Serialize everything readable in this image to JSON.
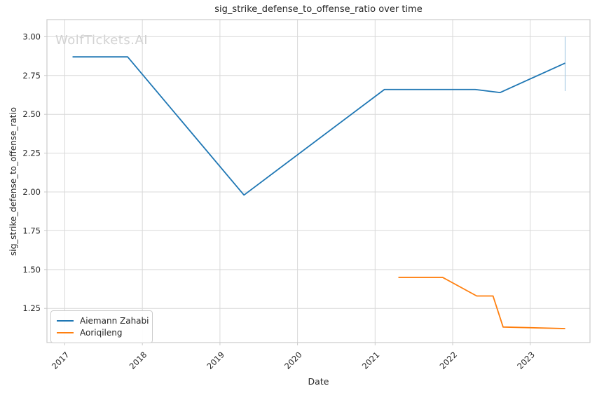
{
  "watermark": {
    "text": "WolfTickets.AI"
  },
  "chart_data": {
    "type": "line",
    "title": "sig_strike_defense_to_offense_ratio over time",
    "xlabel": "Date",
    "ylabel": "sig_strike_defense_to_offense_ratio",
    "xlim": [
      2016.77,
      2023.77
    ],
    "ylim": [
      1.03,
      3.11
    ],
    "xticks": [
      2017,
      2018,
      2019,
      2020,
      2021,
      2022,
      2023
    ],
    "yticks": [
      1.25,
      1.5,
      1.75,
      2.0,
      2.25,
      2.5,
      2.75,
      3.0
    ],
    "grid": true,
    "legend_position": "lower-left",
    "series": [
      {
        "name": "Aiemann Zahabi",
        "color": "#1f77b4",
        "x": [
          2017.1,
          2017.81,
          2019.31,
          2021.12,
          2022.29,
          2022.61,
          2023.45
        ],
        "y": [
          2.87,
          2.87,
          1.98,
          2.66,
          2.66,
          2.64,
          2.83
        ]
      },
      {
        "name": "Aoriqileng",
        "color": "#ff7f0e",
        "x": [
          2021.3,
          2021.87,
          2022.31,
          2022.52,
          2022.65,
          2023.45
        ],
        "y": [
          1.45,
          1.45,
          1.33,
          1.33,
          1.13,
          1.12
        ]
      }
    ],
    "error_bar": {
      "series": "Aiemann Zahabi",
      "x": 2023.45,
      "y_low": 2.65,
      "y_high": 3.0,
      "color": "#a8cbe4"
    },
    "grid_color": "#d9d9d9",
    "spine_color": "#cbcbcb",
    "tick_text_color": "#262626"
  }
}
